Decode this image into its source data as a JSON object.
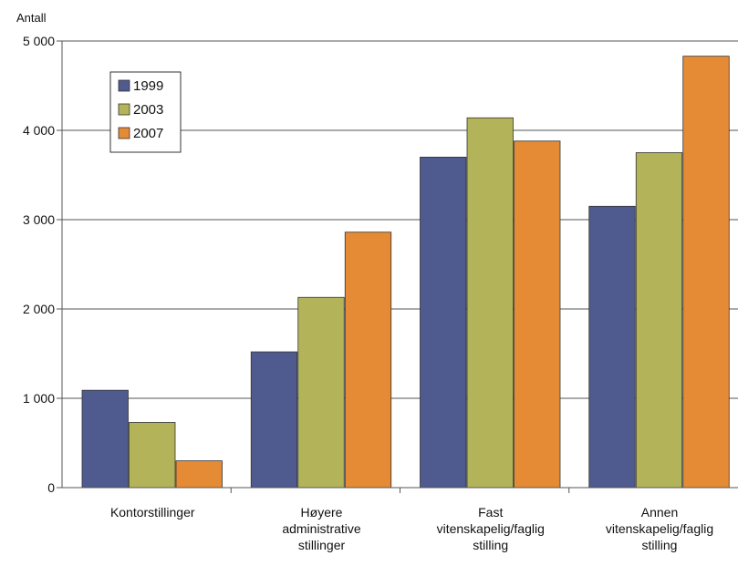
{
  "chart_data": {
    "type": "bar",
    "ylabel": "Antall",
    "ylim": [
      0,
      5000
    ],
    "yticks": [
      0,
      1000,
      2000,
      3000,
      4000,
      5000
    ],
    "ytick_labels": [
      "0",
      "1 000",
      "2 000",
      "3 000",
      "4 000",
      "5 000"
    ],
    "categories": [
      [
        "Kontorstillinger"
      ],
      [
        "Høyere",
        "administrative",
        "stillinger"
      ],
      [
        "Fast",
        "vitenskapelig/faglig",
        "stilling"
      ],
      [
        "Annen",
        "vitenskapelig/faglig",
        "stilling"
      ]
    ],
    "series": [
      {
        "name": "1999",
        "color": "#4f5a8e",
        "values": [
          1090,
          1520,
          3700,
          3150
        ]
      },
      {
        "name": "2003",
        "color": "#b3b45a",
        "values": [
          730,
          2130,
          4140,
          3750
        ]
      },
      {
        "name": "2007",
        "color": "#e58a35",
        "values": [
          300,
          2860,
          3880,
          4830
        ]
      }
    ],
    "grid": true,
    "legend": "top-left"
  }
}
